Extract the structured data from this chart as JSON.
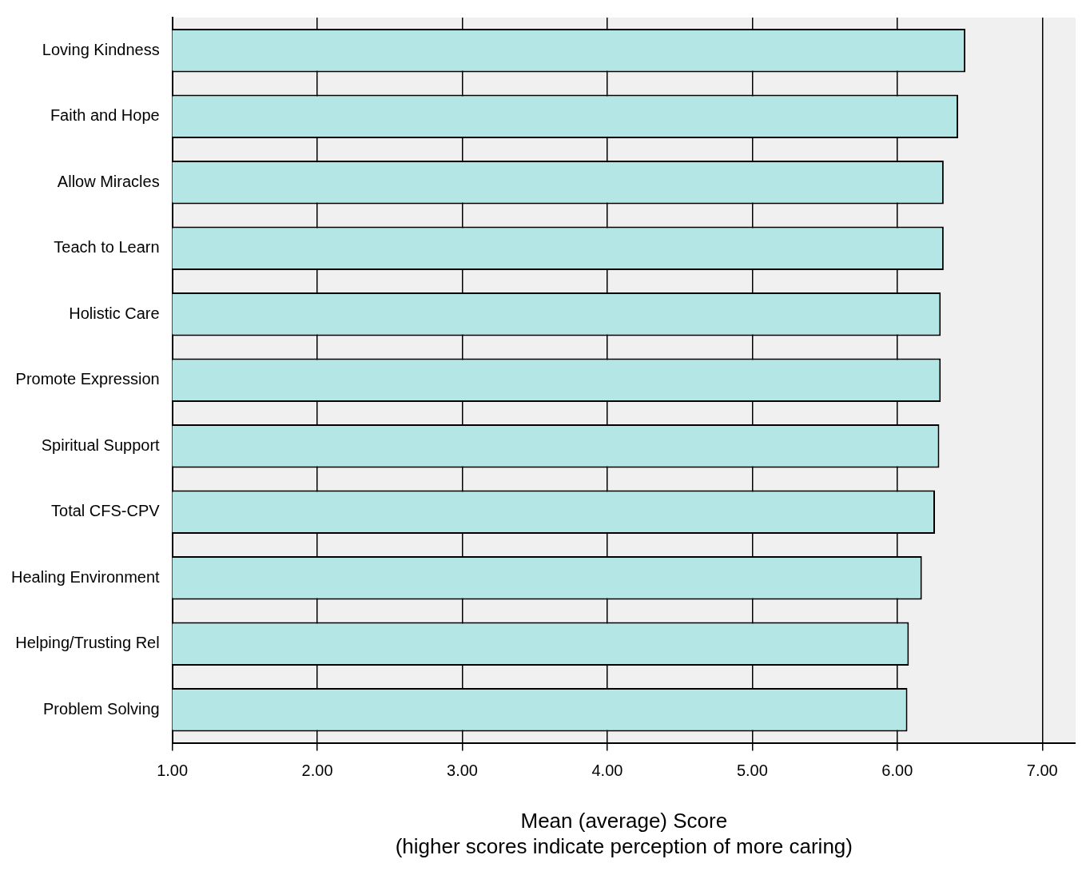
{
  "chart_data": {
    "type": "bar",
    "orientation": "horizontal",
    "categories": [
      "Loving Kindness",
      "Faith and Hope",
      "Allow Miracles",
      "Teach to Learn",
      "Holistic Care",
      "Promote Expression",
      "Spiritual Support",
      "Total CFS-CPV",
      "Healing Environment",
      "Helping/Trusting Rel",
      "Problem Solving"
    ],
    "values": [
      6.47,
      6.42,
      6.32,
      6.32,
      6.3,
      6.3,
      6.29,
      6.26,
      6.17,
      6.08,
      6.07
    ],
    "color": "#b4e6e6",
    "xlim": [
      1,
      7.23
    ],
    "xticks": [
      {
        "value": 1,
        "label": "1.00"
      },
      {
        "value": 2,
        "label": "2.00"
      },
      {
        "value": 3,
        "label": "3.00"
      },
      {
        "value": 4,
        "label": "4.00"
      },
      {
        "value": 5,
        "label": "5.00"
      },
      {
        "value": 6,
        "label": "6.00"
      },
      {
        "value": 7,
        "label": "7.00"
      }
    ],
    "xlabel": "Mean (average) Score\n(higher scores indicate perception of more caring)",
    "grid": "x",
    "legend": false
  }
}
